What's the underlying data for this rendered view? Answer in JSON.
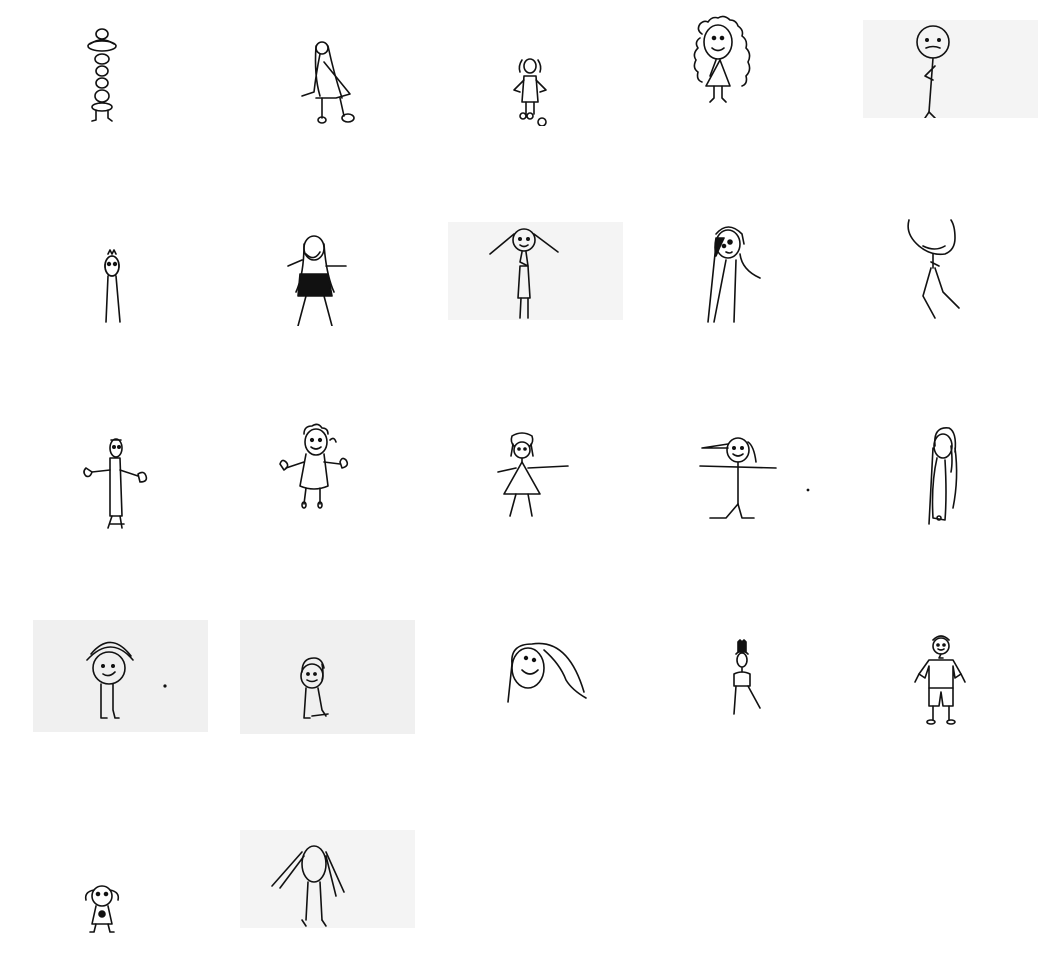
{
  "gallery": {
    "rows": 5,
    "columns": 5,
    "tile_count": 22,
    "background_color": "#ffffff",
    "tile_background_color": "#f2f2f2",
    "stroke_color": "#111111",
    "items": [
      {
        "subject": "stacked-circles-figure",
        "shaded_background": false
      },
      {
        "subject": "figure-with-long-hair-bending",
        "shaded_background": false
      },
      {
        "subject": "small-girl-with-pigtails",
        "shaded_background": false
      },
      {
        "subject": "curly-hair-face",
        "shaded_background": false
      },
      {
        "subject": "stick-figure-round-head",
        "shaded_background": true
      },
      {
        "subject": "tall-thin-figure-small-head",
        "shaded_background": false
      },
      {
        "subject": "long-hair-figure-arms-out",
        "shaded_background": false
      },
      {
        "subject": "figure-with-wide-hair",
        "shaded_background": true
      },
      {
        "subject": "dark-hair-figure",
        "shaded_background": false
      },
      {
        "subject": "large-head-figure-no-face",
        "shaded_background": false
      },
      {
        "subject": "figure-arms-out-hands",
        "shaded_background": false
      },
      {
        "subject": "curly-hair-figure-arms-up",
        "shaded_background": false
      },
      {
        "subject": "triangle-dress-figure",
        "shaded_background": false
      },
      {
        "subject": "stick-figure-side-hair",
        "shaded_background": false
      },
      {
        "subject": "long-hair-profile-figure",
        "shaded_background": false
      },
      {
        "subject": "hat-figure",
        "shaded_background": true
      },
      {
        "subject": "small-smiling-figure",
        "shaded_background": true
      },
      {
        "subject": "large-smiling-head",
        "shaded_background": false
      },
      {
        "subject": "bun-hair-figure",
        "shaded_background": false
      },
      {
        "subject": "boy-in-shorts",
        "shaded_background": false
      },
      {
        "subject": "small-figure-pigtails",
        "shaded_background": false
      },
      {
        "subject": "long-hair-stick-figure",
        "shaded_background": true
      }
    ]
  }
}
